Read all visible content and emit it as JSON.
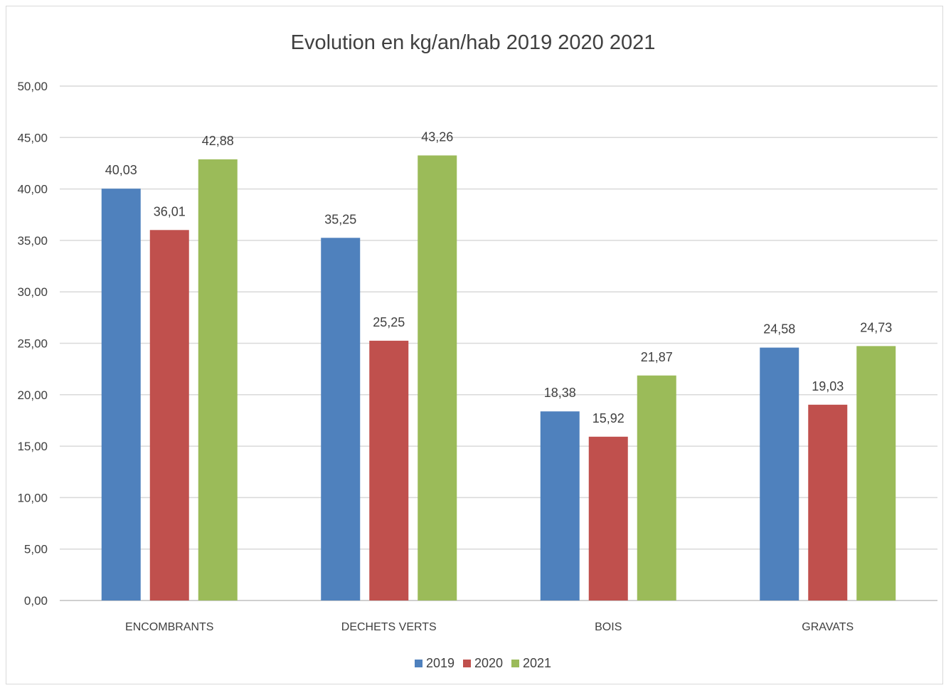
{
  "chart_data": {
    "type": "bar",
    "title": "Evolution en kg/an/hab 2019 2020 2021",
    "categories": [
      "ENCOMBRANTS",
      "DECHETS VERTS",
      "BOIS",
      "GRAVATS"
    ],
    "series": [
      {
        "name": "2019",
        "color": "#4f81bd",
        "values": [
          40.03,
          35.25,
          18.38,
          24.58
        ],
        "labels": [
          "40,03",
          "35,25",
          "18,38",
          "24,58"
        ]
      },
      {
        "name": "2020",
        "color": "#c0504d",
        "values": [
          36.01,
          25.25,
          15.92,
          19.03
        ],
        "labels": [
          "36,01",
          "25,25",
          "15,92",
          "19,03"
        ]
      },
      {
        "name": "2021",
        "color": "#9bbb59",
        "values": [
          42.88,
          43.26,
          21.87,
          24.73
        ],
        "labels": [
          "42,88",
          "43,26",
          "21,87",
          "24,73"
        ]
      }
    ],
    "ylim": [
      0,
      50
    ],
    "yticks": [
      0,
      5,
      10,
      15,
      20,
      25,
      30,
      35,
      40,
      45,
      50
    ],
    "ytick_labels": [
      "0,00",
      "5,00",
      "10,00",
      "15,00",
      "20,00",
      "25,00",
      "30,00",
      "35,00",
      "40,00",
      "45,00",
      "50,00"
    ],
    "grid": true,
    "legend": "bottom"
  }
}
